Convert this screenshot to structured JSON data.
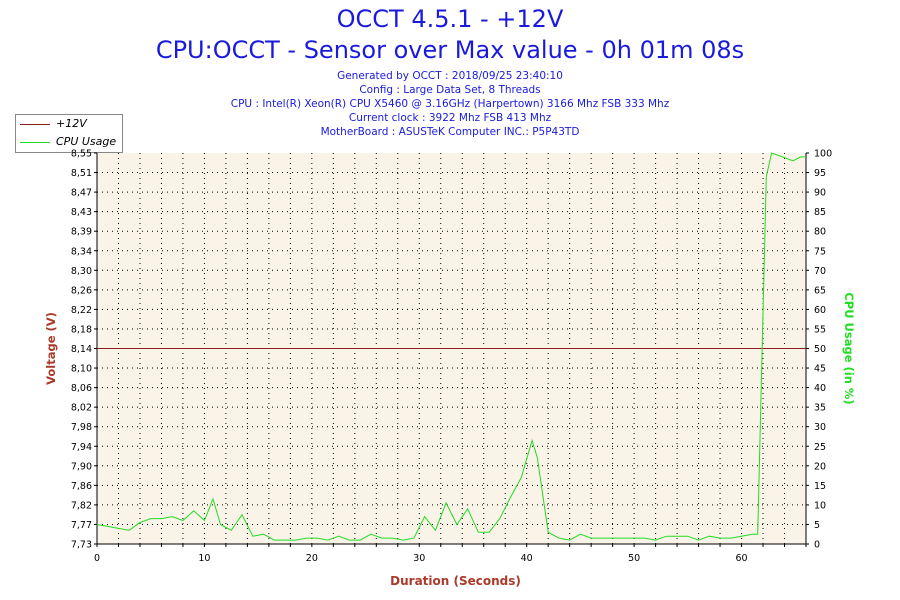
{
  "header": {
    "title": "OCCT 4.5.1 - +12V",
    "subtitle": "CPU:OCCT - Sensor over Max value - 0h 01m 08s",
    "info_lines": [
      "Generated by OCCT : 2018/09/25 23:40:10",
      "Config : Large Data Set, 8 Threads",
      "CPU : Intel(R) Xeon(R) CPU X5460 @ 3.16GHz (Harpertown) 3166 Mhz FSB 333 Mhz",
      "Current clock : 3922 Mhz FSB 413 Mhz",
      "MotherBoard : ASUSTeK Computer INC.: P5P43TD"
    ]
  },
  "colors": {
    "plot_bg": "#faf3e8",
    "voltage": "#8b1a1a",
    "cpu": "#22dd22",
    "title": "#1a1adc",
    "left_axis_label": "#aa3a2a",
    "right_axis_label": "#22dd22",
    "x_axis_label": "#aa3a2a"
  },
  "chart_data": {
    "type": "line",
    "xlabel": "Duration (Seconds)",
    "ylabel_left": "Voltage (V)",
    "ylabel_right": "CPU Usage (in %)",
    "xlim": [
      0,
      66
    ],
    "ylim_left": [
      7.73,
      8.55
    ],
    "ylim_right": [
      0,
      100
    ],
    "grid": true,
    "legend_position": "top-left",
    "x_ticks": [
      "0",
      "10",
      "20",
      "30",
      "40",
      "50",
      "60"
    ],
    "y_left_ticks": [
      "7,73",
      "7,77",
      "7,82",
      "7,86",
      "7,90",
      "7,94",
      "7,98",
      "8,02",
      "8,06",
      "8,10",
      "8,14",
      "8,18",
      "8,22",
      "8,26",
      "8,30",
      "8,34",
      "8,39",
      "8,43",
      "8,47",
      "8,51",
      "8,55"
    ],
    "y_right_ticks": [
      "0",
      "5",
      "10",
      "15",
      "20",
      "25",
      "30",
      "35",
      "40",
      "45",
      "50",
      "55",
      "60",
      "65",
      "70",
      "75",
      "80",
      "85",
      "90",
      "95",
      "100"
    ],
    "series": [
      {
        "name": "+12V",
        "axis": "left",
        "x": [
          0,
          66
        ],
        "y": [
          8.14,
          8.14
        ]
      },
      {
        "name": "CPU Usage",
        "axis": "right",
        "x": [
          0,
          1,
          2,
          3,
          4,
          5,
          6,
          7,
          8,
          9,
          10,
          10.8,
          11.5,
          12.5,
          13.5,
          14.5,
          15.5,
          16.5,
          17.5,
          18.5,
          19.5,
          20.5,
          21.5,
          22.5,
          23.5,
          24.5,
          25.5,
          26.5,
          27.5,
          28.5,
          29.5,
          30.5,
          31.5,
          32.5,
          33.5,
          34.5,
          35.5,
          36.5,
          37.5,
          38.5,
          39.5,
          40.5,
          41,
          42,
          43,
          44,
          45,
          46,
          47,
          48,
          49,
          50,
          51,
          52,
          53,
          54,
          55,
          56,
          57,
          58,
          59,
          60,
          61,
          61.5,
          62.3,
          62.8,
          63.8,
          64.8,
          65.5,
          66
        ],
        "y": [
          5,
          4.5,
          4,
          3.5,
          5.5,
          6.5,
          6.5,
          7,
          6,
          8.5,
          6,
          11.5,
          5,
          3.5,
          7.5,
          2,
          2.5,
          1,
          1,
          1,
          1.5,
          1.5,
          1,
          2,
          1,
          1,
          2.5,
          1.5,
          1.5,
          1,
          1.5,
          7,
          3.5,
          10.5,
          5,
          9,
          3,
          3,
          6.5,
          12,
          17,
          26.5,
          22,
          3,
          1.5,
          1,
          2.5,
          1.5,
          1.5,
          1.5,
          1.5,
          1.5,
          1.5,
          1,
          2,
          2,
          2,
          1,
          2,
          1.5,
          1.5,
          2,
          2.5,
          2.5,
          94,
          100,
          99,
          98,
          99,
          99
        ]
      }
    ]
  }
}
